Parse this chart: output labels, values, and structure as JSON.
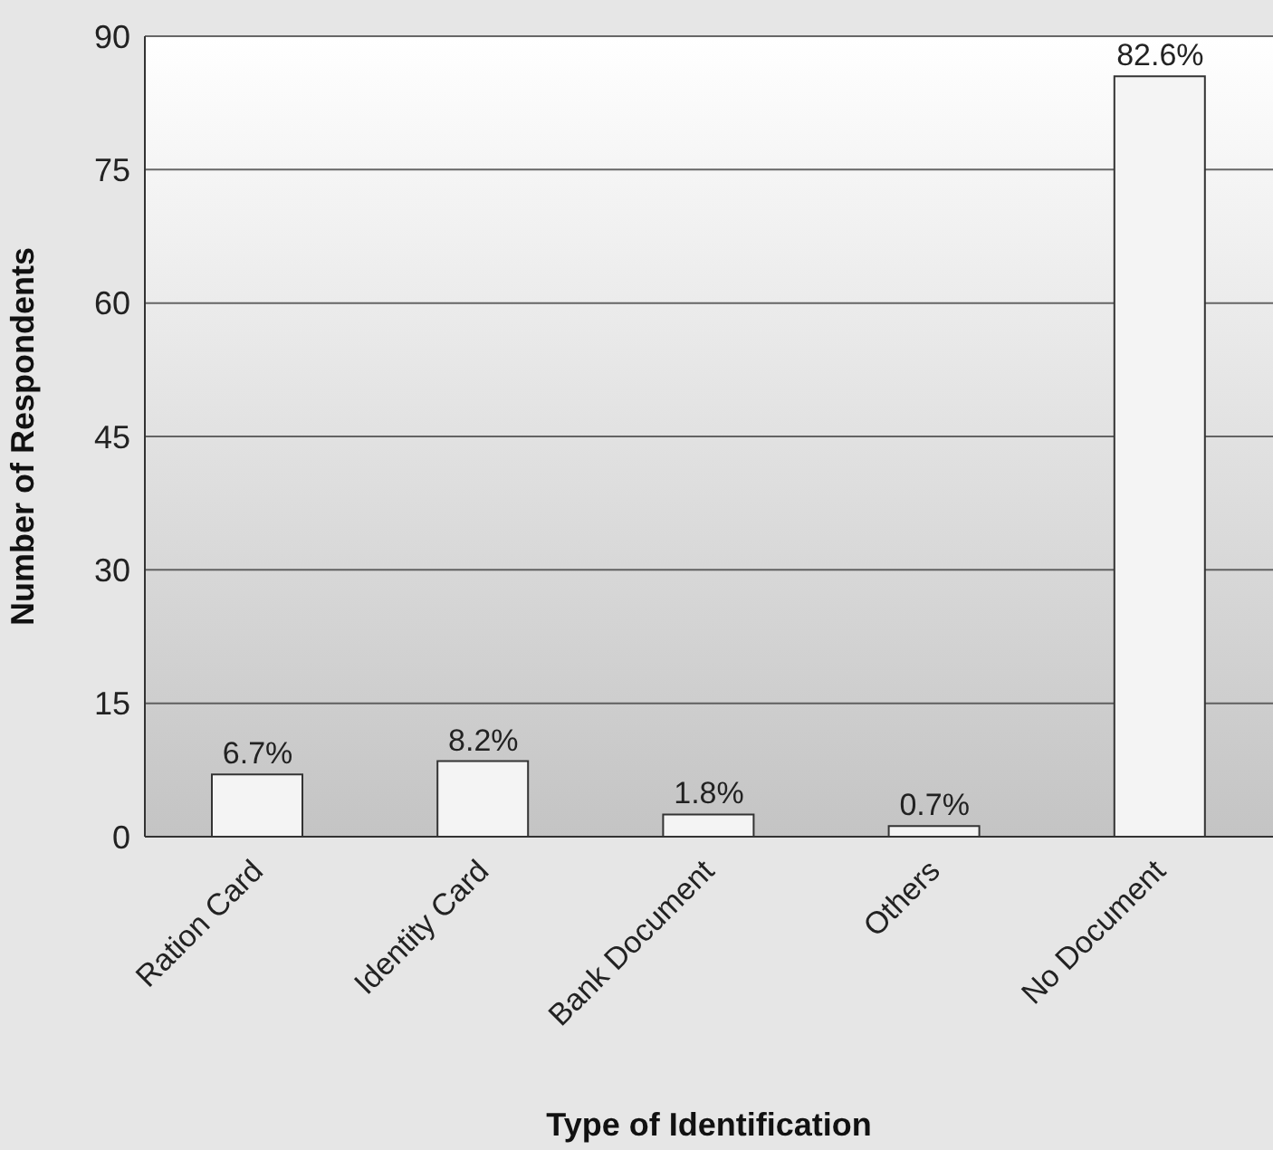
{
  "chart_data": {
    "type": "bar",
    "xlabel": "Type of Identification",
    "ylabel": "Number of Respondents",
    "categories": [
      "Ration Card",
      "Identity Card",
      "Bank Document",
      "Others",
      "No Document"
    ],
    "values": [
      7,
      8.5,
      2.5,
      1.2,
      85.5
    ],
    "annotations": [
      {
        "text": "6.7%",
        "x": "Ration Card",
        "y": 7
      },
      {
        "text": "8.2%",
        "x": "Identity Card",
        "y": 8.5
      },
      {
        "text": "1.8%",
        "x": "Bank Document",
        "y": 2.5
      },
      {
        "text": "0.7%",
        "x": "Others",
        "y": 1.2
      },
      {
        "text": "82.6%",
        "x": "No Document",
        "y": 85.5
      }
    ],
    "color": "#f4f4f4",
    "ylim": [
      0,
      90
    ],
    "yticks": [
      0,
      15,
      30,
      45,
      60,
      75,
      90
    ],
    "grid": "y"
  }
}
